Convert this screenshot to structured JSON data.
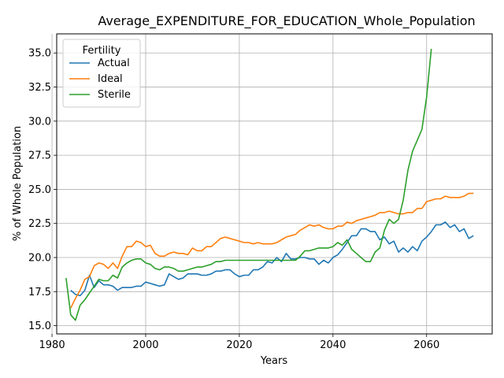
{
  "chart_data": {
    "type": "line",
    "title": "Average_EXPENDITURE_FOR_EDUCATION_Whole_Population",
    "xlabel": "Years",
    "ylabel": "% of Whole Population",
    "xlim": [
      1981,
      2074
    ],
    "ylim": [
      14.4,
      36.4
    ],
    "xticks": [
      1980,
      2000,
      2020,
      2040,
      2060
    ],
    "xtick_labels": [
      "1980",
      "2000",
      "2020",
      "2040",
      "2060"
    ],
    "yticks": [
      15.0,
      17.5,
      20.0,
      22.5,
      25.0,
      27.5,
      30.0,
      32.5,
      35.0
    ],
    "ytick_labels": [
      "15.0",
      "17.5",
      "20.0",
      "22.5",
      "25.0",
      "27.5",
      "30.0",
      "32.5",
      "35.0"
    ],
    "grid": true,
    "legend": {
      "title": "Fertility",
      "placement": "upper-left"
    },
    "series": [
      {
        "name": "Actual",
        "color": "#1f77b4",
        "x": [
          1984,
          1985,
          1986,
          1987,
          1988,
          1989,
          1990,
          1991,
          1992,
          1993,
          1994,
          1995,
          1996,
          1997,
          1998,
          1999,
          2000,
          2001,
          2002,
          2003,
          2004,
          2005,
          2006,
          2007,
          2008,
          2009,
          2010,
          2011,
          2012,
          2013,
          2014,
          2015,
          2016,
          2017,
          2018,
          2019,
          2020,
          2021,
          2022,
          2023,
          2024,
          2025,
          2026,
          2027,
          2028,
          2029,
          2030,
          2031,
          2032,
          2033,
          2034,
          2035,
          2036,
          2037,
          2038,
          2039,
          2040,
          2041,
          2042,
          2043,
          2044,
          2045,
          2046,
          2047,
          2048,
          2049,
          2050,
          2051,
          2052,
          2053,
          2054,
          2055,
          2056,
          2057,
          2058,
          2059,
          2060,
          2061,
          2062,
          2063,
          2064,
          2065,
          2066,
          2067,
          2068,
          2069,
          2070
        ],
        "y": [
          17.6,
          17.3,
          17.2,
          17.6,
          18.7,
          17.8,
          18.3,
          18.0,
          18.0,
          17.9,
          17.6,
          17.8,
          17.8,
          17.8,
          17.9,
          17.9,
          18.2,
          18.1,
          18.0,
          17.9,
          18.0,
          18.8,
          18.6,
          18.4,
          18.5,
          18.8,
          18.8,
          18.8,
          18.7,
          18.7,
          18.8,
          19.0,
          19.0,
          19.1,
          19.1,
          18.8,
          18.6,
          18.7,
          18.7,
          19.1,
          19.1,
          19.3,
          19.7,
          19.6,
          20.0,
          19.7,
          20.3,
          19.9,
          19.9,
          20.0,
          20.0,
          19.9,
          19.9,
          19.5,
          19.8,
          19.6,
          20.0,
          20.2,
          20.6,
          21.1,
          21.6,
          21.6,
          22.1,
          22.1,
          21.9,
          21.9,
          21.3,
          21.5,
          21.0,
          21.2,
          20.4,
          20.7,
          20.4,
          20.8,
          20.5,
          21.2,
          21.5,
          21.9,
          22.4,
          22.4,
          22.6,
          22.2,
          22.4,
          21.9,
          22.1,
          21.4,
          21.6
        ]
      },
      {
        "name": "Ideal",
        "color": "#ff7f0e",
        "x": [
          1984,
          1985,
          1986,
          1987,
          1988,
          1989,
          1990,
          1991,
          1992,
          1993,
          1994,
          1995,
          1996,
          1997,
          1998,
          1999,
          2000,
          2001,
          2002,
          2003,
          2004,
          2005,
          2006,
          2007,
          2008,
          2009,
          2010,
          2011,
          2012,
          2013,
          2014,
          2015,
          2016,
          2017,
          2018,
          2019,
          2020,
          2021,
          2022,
          2023,
          2024,
          2025,
          2026,
          2027,
          2028,
          2029,
          2030,
          2031,
          2032,
          2033,
          2034,
          2035,
          2036,
          2037,
          2038,
          2039,
          2040,
          2041,
          2042,
          2043,
          2044,
          2045,
          2046,
          2047,
          2048,
          2049,
          2050,
          2051,
          2052,
          2053,
          2054,
          2055,
          2056,
          2057,
          2058,
          2059,
          2060,
          2061,
          2062,
          2063,
          2064,
          2065,
          2066,
          2067,
          2068,
          2069,
          2070
        ],
        "y": [
          16.3,
          17.0,
          17.6,
          18.4,
          18.6,
          19.4,
          19.6,
          19.5,
          19.2,
          19.6,
          19.2,
          20.1,
          20.8,
          20.8,
          21.2,
          21.1,
          20.8,
          20.9,
          20.3,
          20.1,
          20.1,
          20.3,
          20.4,
          20.3,
          20.3,
          20.2,
          20.7,
          20.5,
          20.5,
          20.8,
          20.8,
          21.1,
          21.4,
          21.5,
          21.4,
          21.3,
          21.2,
          21.1,
          21.1,
          21.0,
          21.1,
          21.0,
          21.0,
          21.0,
          21.1,
          21.3,
          21.5,
          21.6,
          21.7,
          22.0,
          22.2,
          22.4,
          22.3,
          22.4,
          22.2,
          22.1,
          22.1,
          22.3,
          22.3,
          22.6,
          22.5,
          22.7,
          22.8,
          22.9,
          23.0,
          23.1,
          23.3,
          23.3,
          23.4,
          23.3,
          23.2,
          23.2,
          23.3,
          23.3,
          23.6,
          23.6,
          24.1,
          24.2,
          24.3,
          24.3,
          24.5,
          24.4,
          24.4,
          24.4,
          24.5,
          24.7,
          24.7
        ]
      },
      {
        "name": "Sterile",
        "color": "#2ca02c",
        "x": [
          1983,
          1984,
          1985,
          1986,
          1987,
          1988,
          1989,
          1990,
          1991,
          1992,
          1993,
          1994,
          1995,
          1996,
          1997,
          1998,
          1999,
          2000,
          2001,
          2002,
          2003,
          2004,
          2005,
          2006,
          2007,
          2008,
          2009,
          2010,
          2011,
          2012,
          2013,
          2014,
          2015,
          2016,
          2017,
          2018,
          2019,
          2020,
          2021,
          2022,
          2023,
          2024,
          2025,
          2026,
          2027,
          2028,
          2029,
          2030,
          2031,
          2032,
          2033,
          2034,
          2035,
          2036,
          2037,
          2038,
          2039,
          2040,
          2041,
          2042,
          2043,
          2044,
          2045,
          2046,
          2047,
          2048,
          2049,
          2050,
          2051,
          2052,
          2053,
          2054,
          2055,
          2056,
          2057,
          2058,
          2059,
          2060,
          2061
        ],
        "y": [
          18.5,
          15.8,
          15.4,
          16.5,
          16.9,
          17.4,
          17.9,
          18.4,
          18.3,
          18.3,
          18.7,
          18.5,
          19.3,
          19.6,
          19.8,
          19.9,
          19.9,
          19.6,
          19.5,
          19.2,
          19.1,
          19.3,
          19.3,
          19.2,
          19.0,
          19.0,
          19.1,
          19.2,
          19.3,
          19.3,
          19.4,
          19.5,
          19.7,
          19.7,
          19.8,
          19.8,
          19.8,
          19.8,
          19.8,
          19.8,
          19.8,
          19.8,
          19.8,
          19.8,
          19.8,
          19.8,
          19.8,
          19.8,
          19.8,
          19.8,
          20.1,
          20.5,
          20.5,
          20.6,
          20.7,
          20.7,
          20.7,
          20.8,
          21.1,
          20.9,
          21.3,
          20.6,
          20.3,
          20.0,
          19.7,
          19.7,
          20.4,
          20.7,
          22.0,
          22.8,
          22.5,
          22.8,
          24.2,
          26.4,
          27.8,
          28.6,
          29.4,
          31.8,
          35.3
        ]
      }
    ]
  }
}
